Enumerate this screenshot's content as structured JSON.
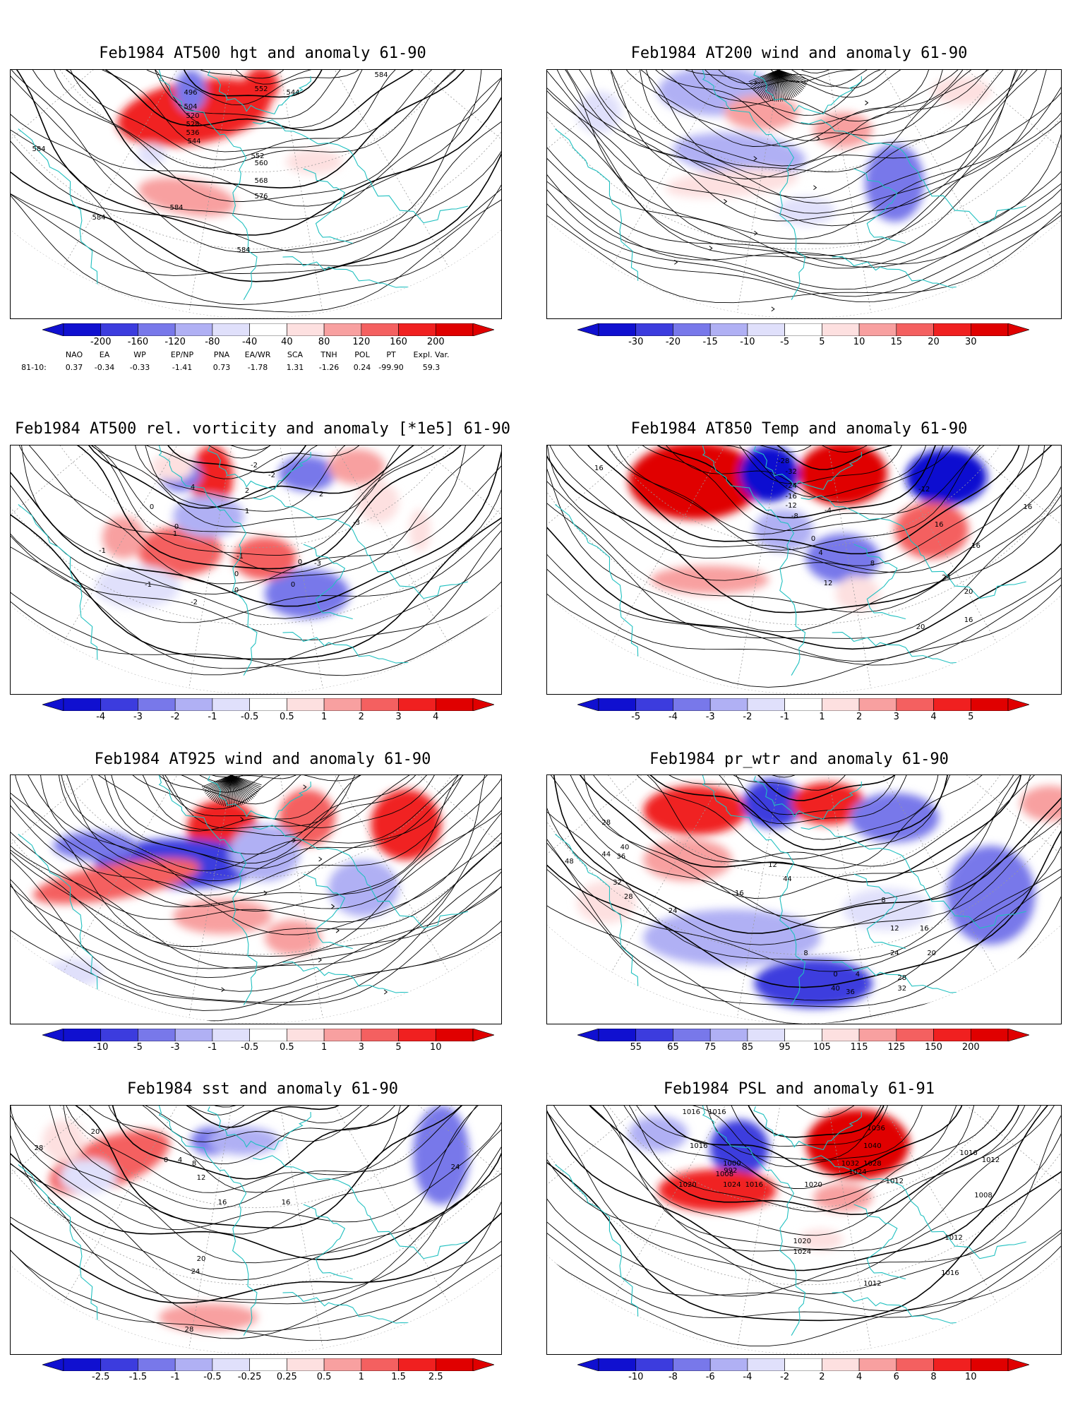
{
  "colors": {
    "coast": "#20c0c0",
    "contour": "#000000",
    "grid": "#9a9a9a",
    "pos": [
      "#fde0e0",
      "#f8a0a0",
      "#f46060",
      "#f02020",
      "#e00000"
    ],
    "neg": [
      "#e0e0fb",
      "#b0b0f4",
      "#7878ea",
      "#3c3cde",
      "#1010d0"
    ]
  },
  "panels": [
    {
      "title": "Feb1984 AT500 hgt and anomaly 61-90",
      "contour_labels": [
        "584",
        "584",
        "584",
        "584",
        "584",
        "552",
        "552",
        "544",
        "496",
        "504",
        "520",
        "528",
        "536",
        "544",
        "560",
        "568",
        "576"
      ],
      "colorbar": [
        "-200",
        "-160",
        "-120",
        "-80",
        "-40",
        "40",
        "80",
        "120",
        "160",
        "200"
      ],
      "indices": {
        "header": [
          "NAO",
          "EA",
          "WP",
          "EP/NP",
          "PNA",
          "EA/WR",
          "SCA",
          "TNH",
          "POL",
          "PT",
          "Expl. Var."
        ],
        "row_label": "81-10:",
        "values": [
          "0.37",
          "-0.34",
          "-0.33",
          "-1.41",
          "0.73",
          "-1.78",
          "1.31",
          "-1.26",
          "0.24",
          "-99.90",
          "59.3"
        ]
      }
    },
    {
      "title": "Feb1984 AT200 wind and anomaly 61-90",
      "contour_labels": [],
      "colorbar": [
        "-30",
        "-20",
        "-15",
        "-10",
        "-5",
        "5",
        "10",
        "15",
        "20",
        "30"
      ]
    },
    {
      "title": "Feb1984 AT500 rel. vorticity and anomaly [*1e5] 61-90",
      "contour_labels": [
        "0",
        "0",
        "0",
        "0",
        "1",
        "-1",
        "2",
        "-2",
        "-3",
        "4",
        "-2",
        "1",
        "-1",
        "2",
        "-3",
        "0",
        "-1",
        "-2",
        "0"
      ],
      "colorbar": [
        "-4",
        "-3",
        "-2",
        "-1",
        "-0.5",
        "0.5",
        "1",
        "2",
        "3",
        "4"
      ]
    },
    {
      "title": "Feb1984 AT850 Temp and anomaly 61-90",
      "contour_labels": [
        "16",
        "-28",
        "-32",
        "-24",
        "-16",
        "-12",
        "-8",
        "-4",
        "0",
        "4",
        "8",
        "12",
        "16",
        "16",
        "20",
        "24",
        "20",
        "16",
        "-12",
        "16"
      ],
      "colorbar": [
        "-5",
        "-4",
        "-3",
        "-2",
        "-1",
        "1",
        "2",
        "3",
        "4",
        "5"
      ]
    },
    {
      "title": "Feb1984 AT925 wind and anomaly 61-90",
      "contour_labels": [],
      "colorbar": [
        "-10",
        "-5",
        "-3",
        "-1",
        "-0.5",
        "0.5",
        "1",
        "3",
        "5",
        "10"
      ]
    },
    {
      "title": "Feb1984 pr_wtr and anomaly 61-90",
      "contour_labels": [
        "28",
        "40",
        "44",
        "48",
        "36",
        "32",
        "28",
        "24",
        "16",
        "12",
        "8",
        "4",
        "0",
        "8",
        "12",
        "16",
        "20",
        "24",
        "28",
        "32",
        "36",
        "40",
        "44"
      ],
      "colorbar": [
        "55",
        "65",
        "75",
        "85",
        "95",
        "105",
        "115",
        "125",
        "150",
        "200"
      ]
    },
    {
      "title": "Feb1984 sst and anomaly 61-90",
      "contour_labels": [
        "28",
        "20",
        "0",
        "4",
        "8",
        "12",
        "16",
        "20",
        "24",
        "28",
        "16",
        "24"
      ],
      "colorbar": [
        "-2.5",
        "-1.5",
        "-1",
        "-0.5",
        "-0.25",
        "0.25",
        "0.5",
        "1",
        "1.5",
        "2.5"
      ]
    },
    {
      "title": "Feb1984 PSL and anomaly 61-91",
      "contour_labels": [
        "1016",
        "1016",
        "1016",
        "1008",
        "1000",
        "992",
        "1036",
        "1040",
        "1032",
        "1028",
        "1024",
        "1020",
        "1024",
        "1016",
        "1020",
        "1012",
        "1016",
        "1012",
        "1008",
        "1012",
        "1020",
        "1024",
        "1016",
        "1012"
      ],
      "colorbar": [
        "-10",
        "-8",
        "-6",
        "-4",
        "-2",
        "2",
        "4",
        "6",
        "8",
        "10"
      ]
    }
  ]
}
